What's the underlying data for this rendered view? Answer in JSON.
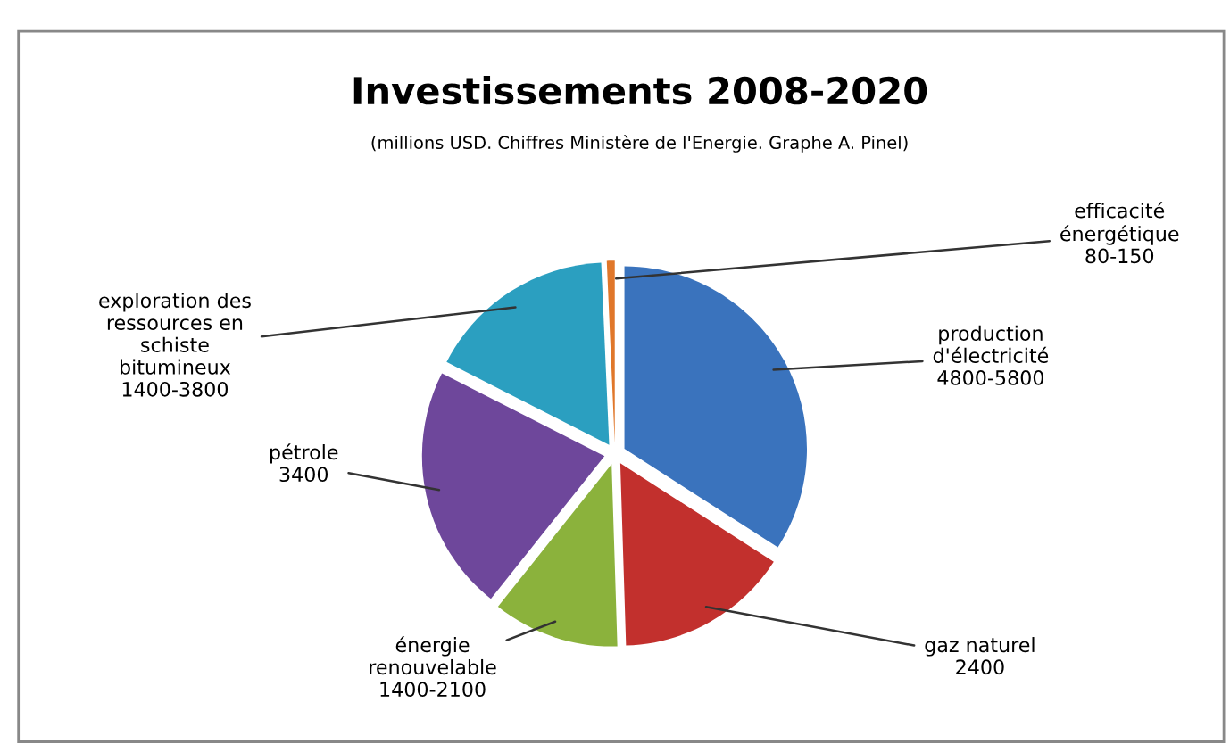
{
  "chart_data": {
    "type": "pie",
    "title": "Investissements 2008-2020",
    "subtitle": "(millions USD. Chiffres Ministère de l'Energie. Graphe A. Pinel)",
    "categories": [
      "production\nd'électricité\n4800-5800",
      "gaz naturel\n2400",
      "énergie\nrenouvelable\n1400-2100",
      "pétrole\n3400",
      "exploration des\nressources en\nschiste\nbitumineux\n1400-3800",
      "efficacité\nénergétique\n80-150"
    ],
    "values": [
      34.1,
      15.4,
      11.2,
      21.8,
      16.8,
      0.7
    ],
    "colors": [
      "#3a73bd",
      "#c2302d",
      "#8bb23c",
      "#6e479b",
      "#2b9fc0",
      "#e0772a"
    ],
    "legend": false
  }
}
